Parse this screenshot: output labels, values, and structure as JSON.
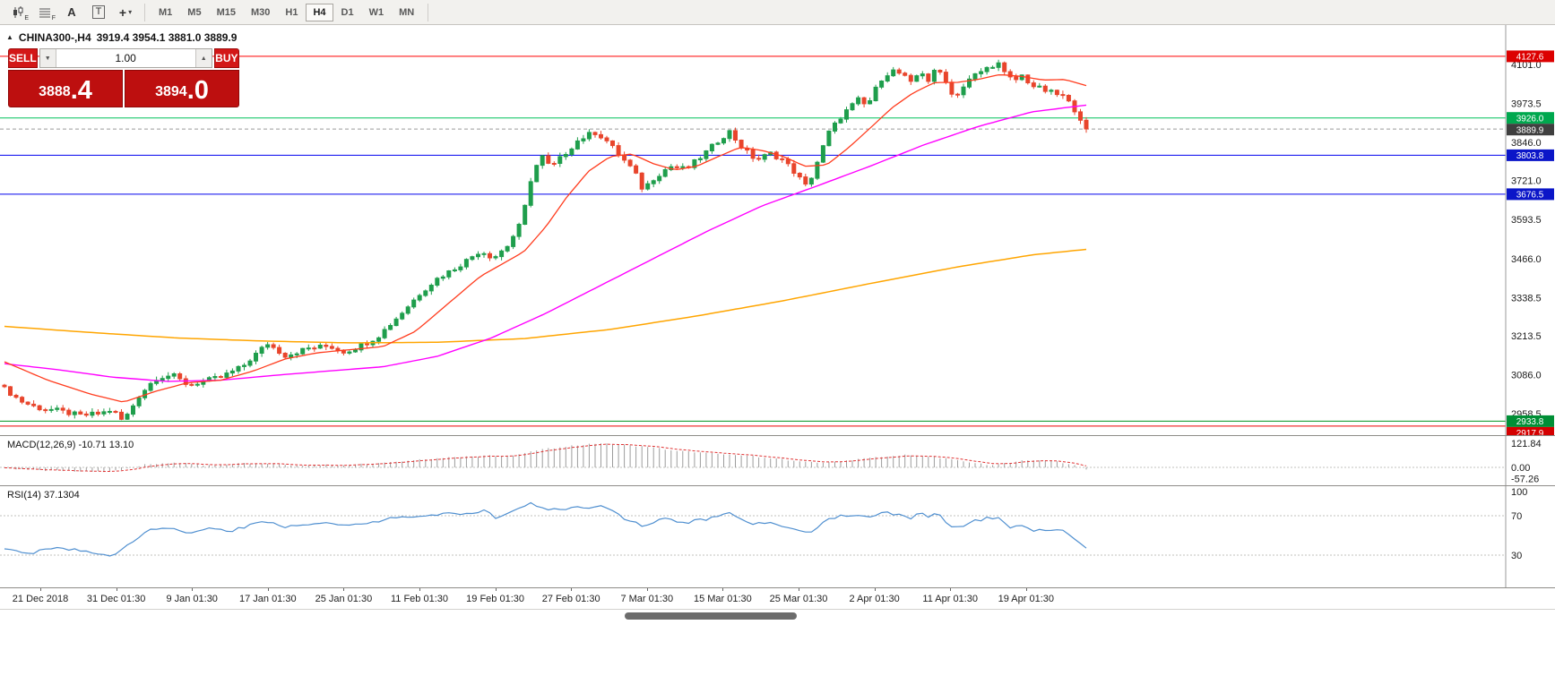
{
  "toolbar": {
    "tools": [
      {
        "name": "candlestick-chart",
        "sub": "E"
      },
      {
        "name": "chart-grid",
        "sub": "F"
      },
      {
        "name": "text-annotation",
        "label": "A"
      },
      {
        "name": "text-box",
        "label": "T"
      },
      {
        "name": "cursor-tool",
        "glyph": "+",
        "caret": "▾"
      }
    ],
    "timeframes": [
      {
        "label": "M1",
        "active": false
      },
      {
        "label": "M5",
        "active": false
      },
      {
        "label": "M15",
        "active": false
      },
      {
        "label": "M30",
        "active": false
      },
      {
        "label": "H1",
        "active": false
      },
      {
        "label": "H4",
        "active": true
      },
      {
        "label": "D1",
        "active": false
      },
      {
        "label": "W1",
        "active": false
      },
      {
        "label": "MN",
        "active": false
      }
    ]
  },
  "chart": {
    "collapse_glyph": "▲",
    "symbol_title": "CHINA300-,H4",
    "ohlc_text": "3919.4 3954.1 3881.0 3889.9",
    "y_axis_labels": [
      "4101.0",
      "3973.5",
      "3846.0",
      "3721.0",
      "3593.5",
      "3466.0",
      "3338.5",
      "3213.5",
      "3086.0",
      "2958.5"
    ],
    "price_tags": [
      {
        "value": "4127.6",
        "color": "#dc0000"
      },
      {
        "value": "3926.0",
        "color": "#00a84e"
      },
      {
        "value": "3889.9",
        "color": "#3f3f3f"
      },
      {
        "value": "3803.8",
        "color": "#0b16c8"
      },
      {
        "value": "3676.5",
        "color": "#0b16c8"
      },
      {
        "value": "2933.8",
        "color": "#008f36"
      },
      {
        "value": "2917.9",
        "color": "#d40000"
      }
    ],
    "h_lines": [
      {
        "price": 4127.6,
        "color": "#ff0000",
        "dash": false
      },
      {
        "price": 3926.0,
        "color": "#00c25c",
        "dash": false
      },
      {
        "price": 3889.9,
        "color": "#9a9a9a",
        "dash": true
      },
      {
        "price": 3803.8,
        "color": "#0000ee",
        "dash": false
      },
      {
        "price": 3676.5,
        "color": "#0000ee",
        "dash": false
      },
      {
        "price": 2933.8,
        "color": "#00931f",
        "dash": false
      },
      {
        "price": 2917.9,
        "color": "#ee0000",
        "dash": false
      }
    ]
  },
  "trade_panel": {
    "sell_label": "SELL",
    "buy_label": "BUY",
    "volume": "1.00",
    "volume_down_glyph": "▼",
    "volume_up_glyph": "▲",
    "sell_price_main": "3888",
    "sell_price_pips": ".4",
    "buy_price_main": "3894",
    "buy_price_pips": ".0"
  },
  "macd": {
    "label": "MACD(12,26,9) -10.71 13.10",
    "axis_labels": [
      "121.84",
      "0.00",
      "-57.26"
    ]
  },
  "rsi": {
    "label": "RSI(14) 37.1304",
    "axis_labels": [
      "100",
      "70",
      "30"
    ]
  },
  "date_axis": {
    "labels": [
      "21 Dec 2018",
      "31 Dec 01:30",
      "9 Jan 01:30",
      "17 Jan 01:30",
      "25 Jan 01:30",
      "11 Feb 01:30",
      "19 Feb 01:30",
      "27 Feb 01:30",
      "7 Mar 01:30",
      "15 Mar 01:30",
      "25 Mar 01:30",
      "2 Apr 01:30",
      "11 Apr 01:30",
      "19 Apr 01:30"
    ]
  },
  "chart_data": {
    "type": "candlestick",
    "symbol": "CHINA300-",
    "timeframe": "H4",
    "last_ohlc": {
      "open": 3919.4,
      "high": 3954.1,
      "low": 3881.0,
      "close": 3889.9
    },
    "bid": 3888.4,
    "ask": 3894.0,
    "candle_count": 186,
    "price_axis_range": [
      2917.9,
      4127.6
    ],
    "horizontal_levels": [
      4127.6,
      3926.0,
      3889.9,
      3803.8,
      3676.5,
      2933.8,
      2917.9
    ],
    "colors": {
      "up": "#1f9e4c",
      "down": "#e8452c",
      "ma_fast": "#ff3c1e",
      "ma_mid": "#ff00ff",
      "ma_slow": "#ffa500",
      "rsi": "#4f8fd0",
      "macd_signal": "#e03232",
      "macd_hist": "#9c9c9c"
    },
    "close_path_anchors": [
      [
        0,
        3040
      ],
      [
        0.015,
        3000
      ],
      [
        0.03,
        2978
      ],
      [
        0.05,
        2968
      ],
      [
        0.07,
        2952
      ],
      [
        0.09,
        2960
      ],
      [
        0.1,
        2972
      ],
      [
        0.105,
        2948
      ],
      [
        0.11,
        2934
      ],
      [
        0.125,
        3020
      ],
      [
        0.14,
        3075
      ],
      [
        0.155,
        3085
      ],
      [
        0.17,
        3052
      ],
      [
        0.185,
        3065
      ],
      [
        0.2,
        3078
      ],
      [
        0.22,
        3112
      ],
      [
        0.243,
        3188
      ],
      [
        0.26,
        3148
      ],
      [
        0.28,
        3172
      ],
      [
        0.3,
        3180
      ],
      [
        0.315,
        3160
      ],
      [
        0.33,
        3182
      ],
      [
        0.345,
        3210
      ],
      [
        0.365,
        3280
      ],
      [
        0.385,
        3355
      ],
      [
        0.4,
        3400
      ],
      [
        0.42,
        3442
      ],
      [
        0.44,
        3492
      ],
      [
        0.452,
        3468
      ],
      [
        0.465,
        3508
      ],
      [
        0.478,
        3585
      ],
      [
        0.488,
        3748
      ],
      [
        0.497,
        3800
      ],
      [
        0.505,
        3762
      ],
      [
        0.515,
        3798
      ],
      [
        0.53,
        3852
      ],
      [
        0.545,
        3880
      ],
      [
        0.555,
        3858
      ],
      [
        0.568,
        3806
      ],
      [
        0.582,
        3752
      ],
      [
        0.59,
        3692
      ],
      [
        0.6,
        3728
      ],
      [
        0.615,
        3768
      ],
      [
        0.63,
        3758
      ],
      [
        0.645,
        3802
      ],
      [
        0.66,
        3852
      ],
      [
        0.67,
        3882
      ],
      [
        0.682,
        3828
      ],
      [
        0.695,
        3788
      ],
      [
        0.708,
        3810
      ],
      [
        0.72,
        3788
      ],
      [
        0.732,
        3742
      ],
      [
        0.742,
        3698
      ],
      [
        0.752,
        3788
      ],
      [
        0.762,
        3878
      ],
      [
        0.775,
        3938
      ],
      [
        0.79,
        3988
      ],
      [
        0.797,
        3962
      ],
      [
        0.81,
        4052
      ],
      [
        0.82,
        4082
      ],
      [
        0.83,
        4068
      ],
      [
        0.838,
        4038
      ],
      [
        0.847,
        4082
      ],
      [
        0.854,
        4048
      ],
      [
        0.862,
        4088
      ],
      [
        0.87,
        4052
      ],
      [
        0.877,
        3992
      ],
      [
        0.885,
        4022
      ],
      [
        0.895,
        4062
      ],
      [
        0.905,
        4082
      ],
      [
        0.918,
        4108
      ],
      [
        0.926,
        4062
      ],
      [
        0.934,
        4048
      ],
      [
        0.94,
        4066
      ],
      [
        0.95,
        4032
      ],
      [
        0.96,
        4018
      ],
      [
        0.97,
        4006
      ],
      [
        0.978,
        3998
      ],
      [
        0.985,
        3972
      ],
      [
        0.992,
        3942
      ],
      [
        1,
        3889.9
      ]
    ],
    "ma_fast_anchors": [
      [
        0,
        3128
      ],
      [
        0.04,
        3068
      ],
      [
        0.08,
        3022
      ],
      [
        0.11,
        2996
      ],
      [
        0.14,
        3032
      ],
      [
        0.17,
        3060
      ],
      [
        0.2,
        3068
      ],
      [
        0.23,
        3098
      ],
      [
        0.26,
        3138
      ],
      [
        0.29,
        3158
      ],
      [
        0.32,
        3168
      ],
      [
        0.35,
        3178
      ],
      [
        0.38,
        3228
      ],
      [
        0.41,
        3318
      ],
      [
        0.44,
        3408
      ],
      [
        0.46,
        3448
      ],
      [
        0.48,
        3488
      ],
      [
        0.5,
        3568
      ],
      [
        0.52,
        3668
      ],
      [
        0.54,
        3752
      ],
      [
        0.56,
        3800
      ],
      [
        0.58,
        3808
      ],
      [
        0.6,
        3776
      ],
      [
        0.62,
        3756
      ],
      [
        0.64,
        3768
      ],
      [
        0.66,
        3800
      ],
      [
        0.68,
        3830
      ],
      [
        0.7,
        3820
      ],
      [
        0.72,
        3800
      ],
      [
        0.74,
        3768
      ],
      [
        0.76,
        3772
      ],
      [
        0.78,
        3828
      ],
      [
        0.8,
        3892
      ],
      [
        0.82,
        3958
      ],
      [
        0.84,
        4008
      ],
      [
        0.86,
        4042
      ],
      [
        0.88,
        4042
      ],
      [
        0.9,
        4052
      ],
      [
        0.92,
        4068
      ],
      [
        0.94,
        4062
      ],
      [
        0.96,
        4050
      ],
      [
        0.98,
        4052
      ],
      [
        1,
        4032
      ]
    ],
    "ma_mid_anchors": [
      [
        0,
        3122
      ],
      [
        0.05,
        3102
      ],
      [
        0.1,
        3078
      ],
      [
        0.15,
        3064
      ],
      [
        0.2,
        3068
      ],
      [
        0.25,
        3084
      ],
      [
        0.3,
        3098
      ],
      [
        0.35,
        3112
      ],
      [
        0.4,
        3146
      ],
      [
        0.45,
        3206
      ],
      [
        0.5,
        3286
      ],
      [
        0.55,
        3376
      ],
      [
        0.6,
        3466
      ],
      [
        0.65,
        3556
      ],
      [
        0.7,
        3638
      ],
      [
        0.75,
        3702
      ],
      [
        0.8,
        3768
      ],
      [
        0.85,
        3838
      ],
      [
        0.9,
        3898
      ],
      [
        0.95,
        3946
      ],
      [
        1,
        3968
      ]
    ],
    "ma_slow_anchors": [
      [
        0,
        3244
      ],
      [
        0.08,
        3224
      ],
      [
        0.16,
        3206
      ],
      [
        0.24,
        3196
      ],
      [
        0.32,
        3190
      ],
      [
        0.4,
        3192
      ],
      [
        0.48,
        3204
      ],
      [
        0.56,
        3234
      ],
      [
        0.64,
        3278
      ],
      [
        0.72,
        3328
      ],
      [
        0.8,
        3384
      ],
      [
        0.88,
        3438
      ],
      [
        0.95,
        3478
      ],
      [
        1,
        3496
      ]
    ],
    "macd_hist_anchors": [
      [
        0,
        -4
      ],
      [
        0.03,
        -14
      ],
      [
        0.06,
        -18
      ],
      [
        0.09,
        -22
      ],
      [
        0.11,
        -12
      ],
      [
        0.13,
        16
      ],
      [
        0.16,
        22
      ],
      [
        0.19,
        8
      ],
      [
        0.22,
        20
      ],
      [
        0.25,
        17
      ],
      [
        0.28,
        9
      ],
      [
        0.31,
        12
      ],
      [
        0.34,
        18
      ],
      [
        0.37,
        34
      ],
      [
        0.4,
        46
      ],
      [
        0.43,
        54
      ],
      [
        0.45,
        60
      ],
      [
        0.47,
        56
      ],
      [
        0.49,
        84
      ],
      [
        0.51,
        100
      ],
      [
        0.53,
        112
      ],
      [
        0.55,
        120
      ],
      [
        0.57,
        115
      ],
      [
        0.59,
        104
      ],
      [
        0.61,
        92
      ],
      [
        0.63,
        80
      ],
      [
        0.65,
        72
      ],
      [
        0.67,
        66
      ],
      [
        0.69,
        58
      ],
      [
        0.71,
        46
      ],
      [
        0.73,
        34
      ],
      [
        0.75,
        22
      ],
      [
        0.77,
        30
      ],
      [
        0.79,
        42
      ],
      [
        0.81,
        54
      ],
      [
        0.83,
        62
      ],
      [
        0.85,
        57
      ],
      [
        0.87,
        46
      ],
      [
        0.885,
        32
      ],
      [
        0.9,
        18
      ],
      [
        0.915,
        10
      ],
      [
        0.93,
        24
      ],
      [
        0.945,
        36
      ],
      [
        0.955,
        40
      ],
      [
        0.965,
        33
      ],
      [
        0.975,
        26
      ],
      [
        0.985,
        15
      ],
      [
        0.993,
        3
      ],
      [
        1,
        -10.71
      ]
    ],
    "rsi_anchors": [
      [
        0,
        36
      ],
      [
        0.02,
        31
      ],
      [
        0.05,
        38
      ],
      [
        0.08,
        33
      ],
      [
        0.1,
        30
      ],
      [
        0.12,
        44
      ],
      [
        0.13,
        54
      ],
      [
        0.15,
        58
      ],
      [
        0.17,
        53
      ],
      [
        0.19,
        57
      ],
      [
        0.21,
        55
      ],
      [
        0.24,
        65
      ],
      [
        0.26,
        58
      ],
      [
        0.29,
        64
      ],
      [
        0.32,
        59
      ],
      [
        0.34,
        64
      ],
      [
        0.37,
        69
      ],
      [
        0.4,
        71
      ],
      [
        0.43,
        73
      ],
      [
        0.445,
        75
      ],
      [
        0.455,
        67
      ],
      [
        0.475,
        78
      ],
      [
        0.487,
        83
      ],
      [
        0.5,
        75
      ],
      [
        0.52,
        77
      ],
      [
        0.54,
        79
      ],
      [
        0.555,
        79
      ],
      [
        0.57,
        69
      ],
      [
        0.59,
        59
      ],
      [
        0.61,
        67
      ],
      [
        0.63,
        63
      ],
      [
        0.65,
        67
      ],
      [
        0.67,
        72
      ],
      [
        0.69,
        61
      ],
      [
        0.71,
        63
      ],
      [
        0.735,
        55
      ],
      [
        0.745,
        52
      ],
      [
        0.757,
        64
      ],
      [
        0.77,
        69
      ],
      [
        0.79,
        71
      ],
      [
        0.797,
        67
      ],
      [
        0.815,
        75
      ],
      [
        0.825,
        71
      ],
      [
        0.837,
        67
      ],
      [
        0.848,
        73
      ],
      [
        0.855,
        69
      ],
      [
        0.863,
        72
      ],
      [
        0.877,
        57
      ],
      [
        0.888,
        59
      ],
      [
        0.897,
        65
      ],
      [
        0.918,
        69
      ],
      [
        0.928,
        58
      ],
      [
        0.938,
        61
      ],
      [
        0.953,
        55
      ],
      [
        0.968,
        54
      ],
      [
        0.978,
        56
      ],
      [
        0.988,
        47
      ],
      [
        1,
        37.13
      ]
    ],
    "indicators": {
      "macd": {
        "params": "12,26,9",
        "value": -10.71,
        "signal": 13.1,
        "axis": [
          121.84,
          0.0,
          -57.26
        ]
      },
      "rsi": {
        "params": "14",
        "value": 37.1304,
        "levels": [
          70,
          30
        ],
        "axis": [
          100,
          70,
          30
        ]
      }
    }
  }
}
